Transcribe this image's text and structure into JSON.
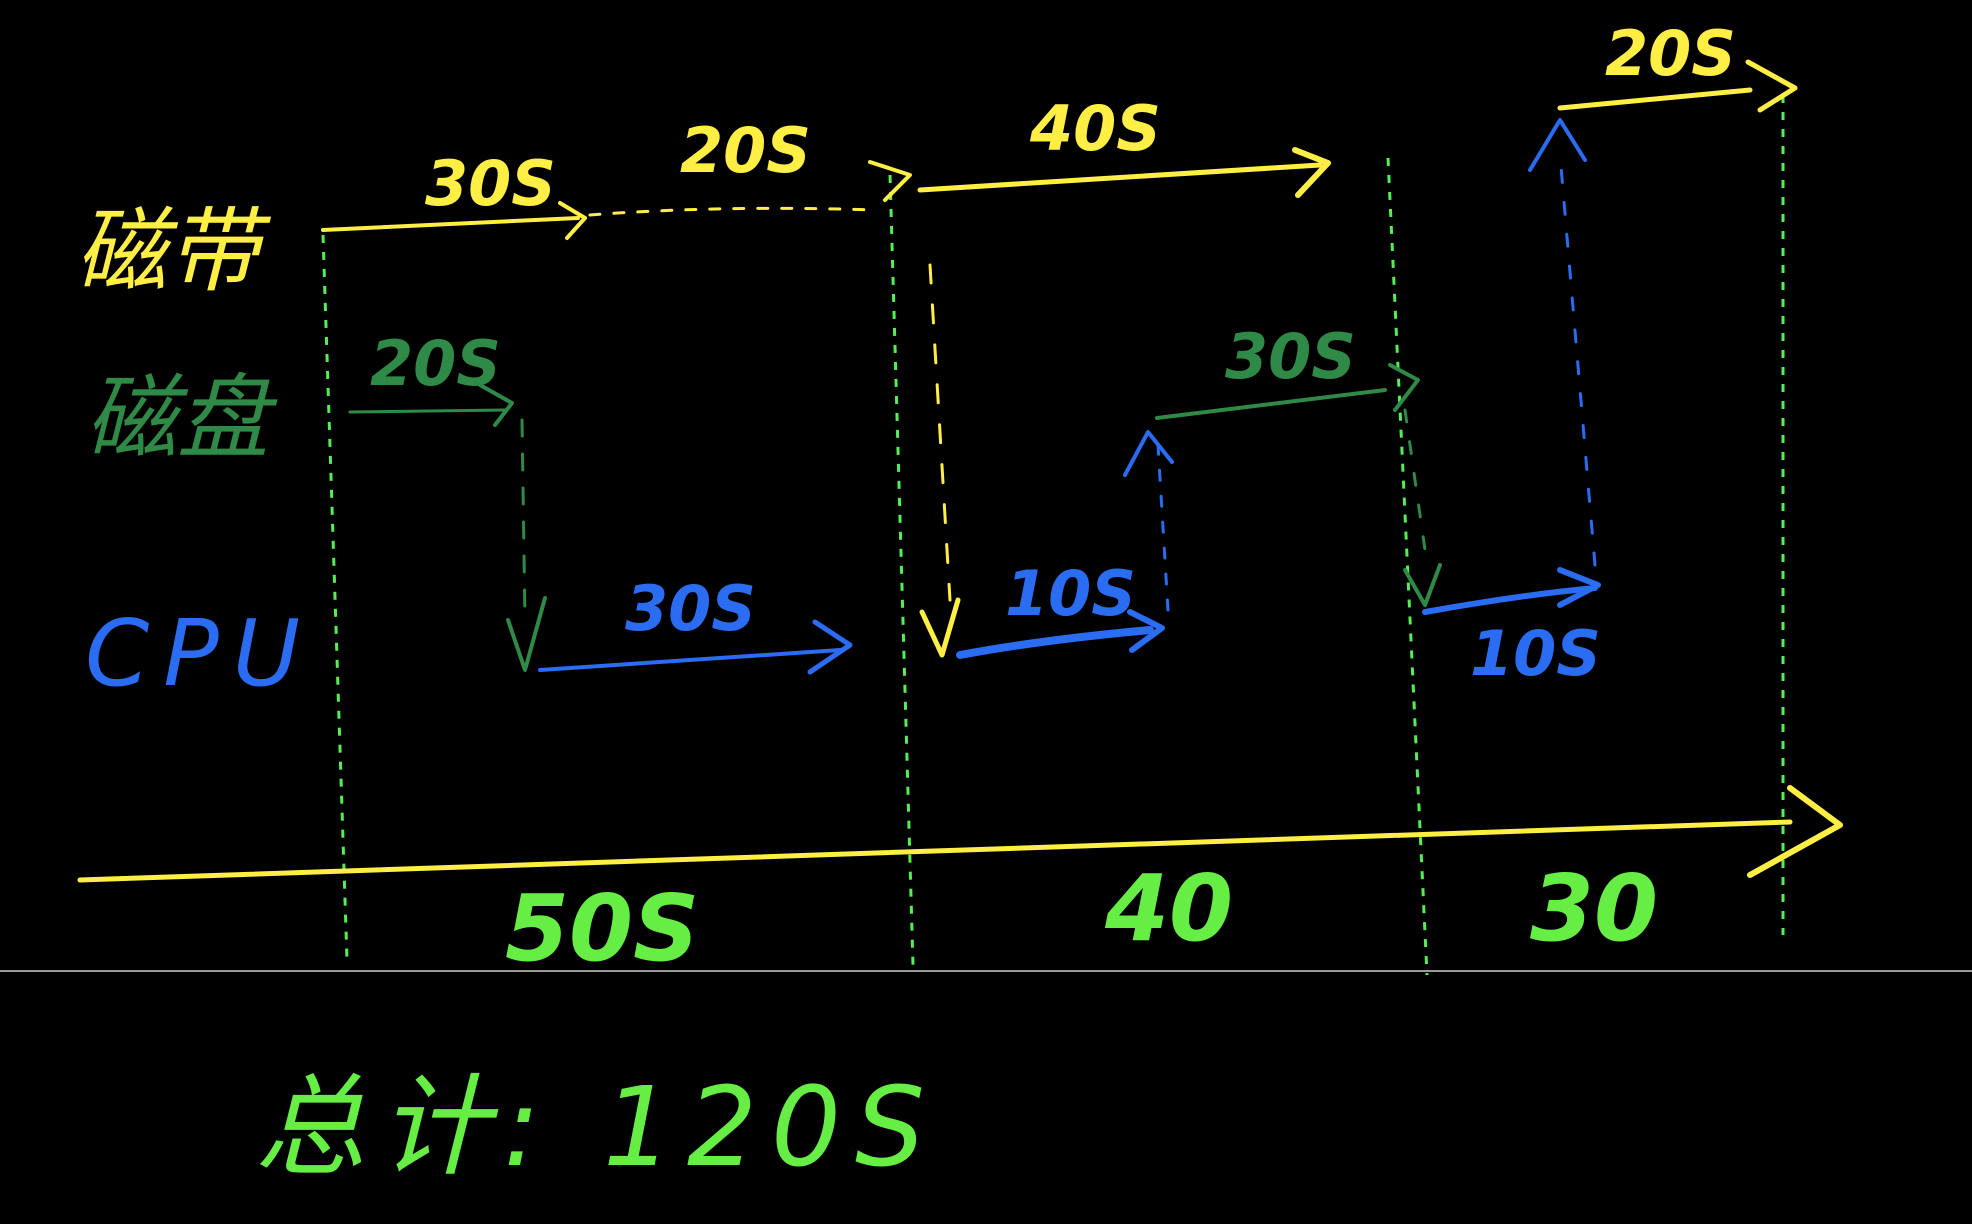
{
  "colors": {
    "background": "#000000",
    "tape": "#ffee44",
    "disk": "#2f8a47",
    "cpu": "#2a6cf2",
    "guide": "#55ee55",
    "divider": "#9a9a9a"
  },
  "rows": {
    "tape_label": "磁带",
    "disk_label": "磁盘",
    "cpu_label": "CPU"
  },
  "durations": {
    "tape_1": "30S",
    "tape_wait": "20S",
    "tape_2": "40S",
    "tape_3": "20S",
    "disk_1": "20S",
    "disk_2": "30S",
    "cpu_1": "30S",
    "cpu_2": "10S",
    "cpu_3": "10S"
  },
  "segments": {
    "seg_1": "50S",
    "seg_2": "40",
    "seg_3": "30"
  },
  "total": "总计: 120S"
}
